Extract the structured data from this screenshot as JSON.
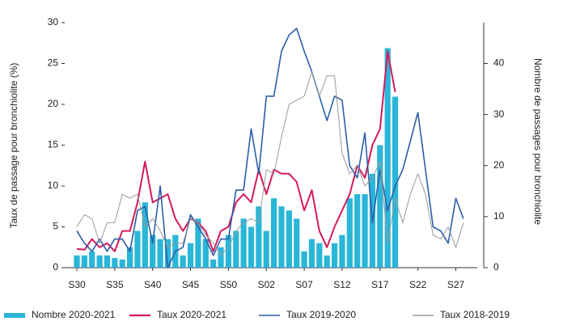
{
  "chart_data": {
    "type": "bar_line",
    "y_label": "Taux de passage pour bronchiolite (%)",
    "y2_label": "Nombre de passages pour bronchiolite",
    "categories": [
      "S30",
      null,
      null,
      null,
      null,
      "S35",
      null,
      null,
      null,
      null,
      "S40",
      null,
      null,
      null,
      null,
      "S45",
      null,
      null,
      null,
      null,
      "S50",
      null,
      null,
      null,
      null,
      "S02",
      null,
      null,
      null,
      null,
      "S07",
      null,
      null,
      null,
      null,
      "S12",
      null,
      null,
      null,
      null,
      "S17",
      null,
      null,
      null,
      null,
      "S22",
      null,
      null,
      null,
      null,
      "S27",
      null
    ],
    "ylim": [
      0,
      30
    ],
    "yticks": [
      0,
      5,
      10,
      15,
      20,
      25,
      30
    ],
    "y2lim": [
      0,
      48
    ],
    "y2ticks": [
      0,
      10,
      20,
      30,
      40
    ],
    "series": [
      {
        "name": "Nombre 2020-2021",
        "kind": "bar",
        "axis": "y2",
        "color": "#29b6d9",
        "values": [
          2.4,
          2.4,
          3.2,
          2.4,
          2.4,
          1.9,
          1.6,
          4,
          7.2,
          12.8,
          6.4,
          5.6,
          5.6,
          6.4,
          2.4,
          4.8,
          9.6,
          5.6,
          1.6,
          4,
          6.4,
          7.2,
          9.6,
          8,
          12,
          7.2,
          13.6,
          12,
          11.2,
          9.6,
          3.2,
          5.6,
          4.8,
          2.4,
          4.8,
          6.4,
          13.6,
          14.4,
          14.4,
          18.4,
          24,
          43,
          33.5,
          null,
          null,
          null,
          null,
          null,
          null,
          null,
          null,
          null
        ]
      },
      {
        "name": "Taux 2020-2021",
        "kind": "line",
        "color": "#d6195b",
        "values": [
          2.3,
          2.2,
          3.5,
          2.5,
          3,
          2,
          4.5,
          4.5,
          8,
          13,
          8,
          8.5,
          9,
          6,
          4.5,
          6,
          5.5,
          4.5,
          2,
          4.5,
          5,
          8,
          9,
          8,
          12,
          9,
          12,
          11.5,
          11.5,
          10.5,
          7,
          9.5,
          4.5,
          2.5,
          5,
          7,
          9,
          12.5,
          11,
          15,
          17,
          26.5,
          21.5,
          null,
          null,
          null,
          null,
          null,
          null,
          null,
          null,
          null
        ]
      },
      {
        "name": "Taux 2019-2020",
        "kind": "line",
        "color": "#2b5ea8",
        "values": [
          4.5,
          3,
          2,
          3.5,
          2,
          3.5,
          3.5,
          2,
          7,
          7.5,
          3,
          10,
          0,
          2,
          2.5,
          6.5,
          5,
          3.5,
          1.5,
          3.5,
          3.5,
          9.5,
          9.5,
          17,
          11.5,
          21,
          21,
          26.5,
          28.5,
          29.3,
          26.5,
          24,
          21,
          18,
          21,
          20.5,
          12.5,
          11,
          16.5,
          5.5,
          12,
          7,
          10,
          12,
          15.5,
          19,
          12,
          5,
          4.5,
          3,
          8.5,
          6
        ]
      },
      {
        "name": "Taux 2018-2019",
        "kind": "line",
        "color": "#9a9a9a",
        "values": [
          5,
          6.5,
          6,
          3,
          5.5,
          5.5,
          9,
          8.5,
          9,
          5,
          6,
          4.5,
          2.5,
          3,
          3,
          6,
          5.5,
          4,
          3,
          1.5,
          2.5,
          4.5,
          5.5,
          6,
          5.5,
          12,
          11.5,
          16,
          20,
          20.5,
          21,
          24,
          21,
          23.5,
          23.5,
          14,
          11.5,
          12.5,
          10,
          11,
          13,
          3,
          8.5,
          5.5,
          9,
          11.5,
          9,
          4,
          3.5,
          5,
          2.5,
          5.5
        ]
      }
    ]
  }
}
